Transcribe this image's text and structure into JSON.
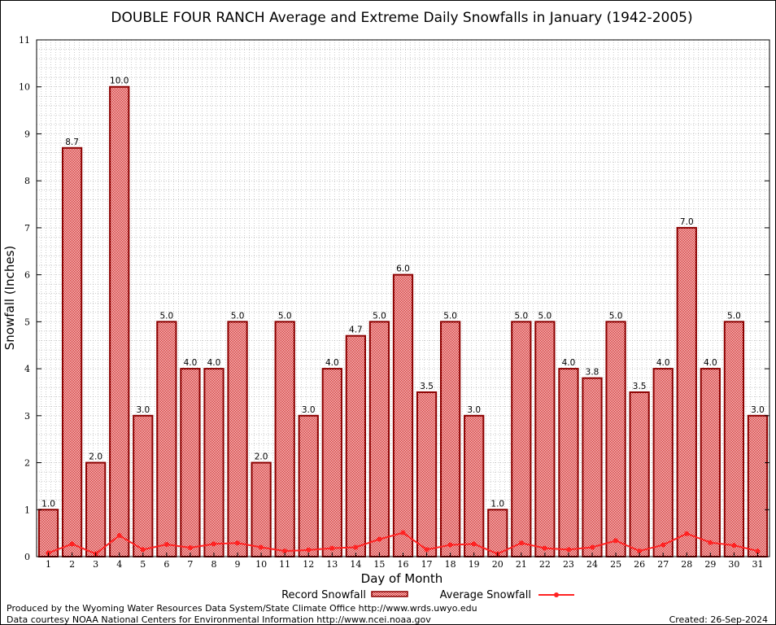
{
  "chart_data": {
    "type": "bar",
    "title": "DOUBLE FOUR RANCH Average and Extreme Daily Snowfalls in January (1942-2005)",
    "xlabel": "Day of Month",
    "ylabel": "Snowfall (Inches)",
    "ylim": [
      0,
      11
    ],
    "yticks": [
      0,
      1,
      2,
      3,
      4,
      5,
      6,
      7,
      8,
      9,
      10,
      11
    ],
    "grid": true,
    "legend_placement": "bottom",
    "categories": [
      "1",
      "2",
      "3",
      "4",
      "5",
      "6",
      "7",
      "8",
      "9",
      "10",
      "11",
      "12",
      "13",
      "14",
      "15",
      "16",
      "17",
      "18",
      "19",
      "20",
      "21",
      "22",
      "23",
      "24",
      "25",
      "26",
      "27",
      "28",
      "29",
      "30",
      "31"
    ],
    "series": [
      {
        "name": "Record Snowfall",
        "type": "bar",
        "color": "#cc0000",
        "border": "#8b0000",
        "values": [
          1.0,
          8.7,
          2.0,
          10.0,
          3.0,
          5.0,
          4.0,
          4.0,
          5.0,
          2.0,
          5.0,
          3.0,
          4.0,
          4.7,
          5.0,
          6.0,
          3.5,
          5.0,
          3.0,
          1.0,
          5.0,
          5.0,
          4.0,
          3.8,
          5.0,
          3.5,
          4.0,
          7.0,
          4.0,
          5.0,
          3.0
        ]
      },
      {
        "name": "Average Snowfall",
        "type": "line",
        "color": "#ff2222",
        "values": [
          0.08,
          0.27,
          0.06,
          0.45,
          0.15,
          0.26,
          0.19,
          0.27,
          0.29,
          0.2,
          0.12,
          0.14,
          0.18,
          0.2,
          0.37,
          0.51,
          0.15,
          0.25,
          0.27,
          0.06,
          0.29,
          0.18,
          0.15,
          0.2,
          0.34,
          0.12,
          0.25,
          0.49,
          0.3,
          0.24,
          0.12
        ]
      }
    ]
  },
  "footer": {
    "line1": "Produced by the Wyoming Water Resources Data System/State Climate Office http://www.wrds.uwyo.edu",
    "line2": "Data courtesy NOAA National Centers for Environmental Information http://www.ncei.noaa.gov",
    "created": "Created:  26-Sep-2024"
  }
}
